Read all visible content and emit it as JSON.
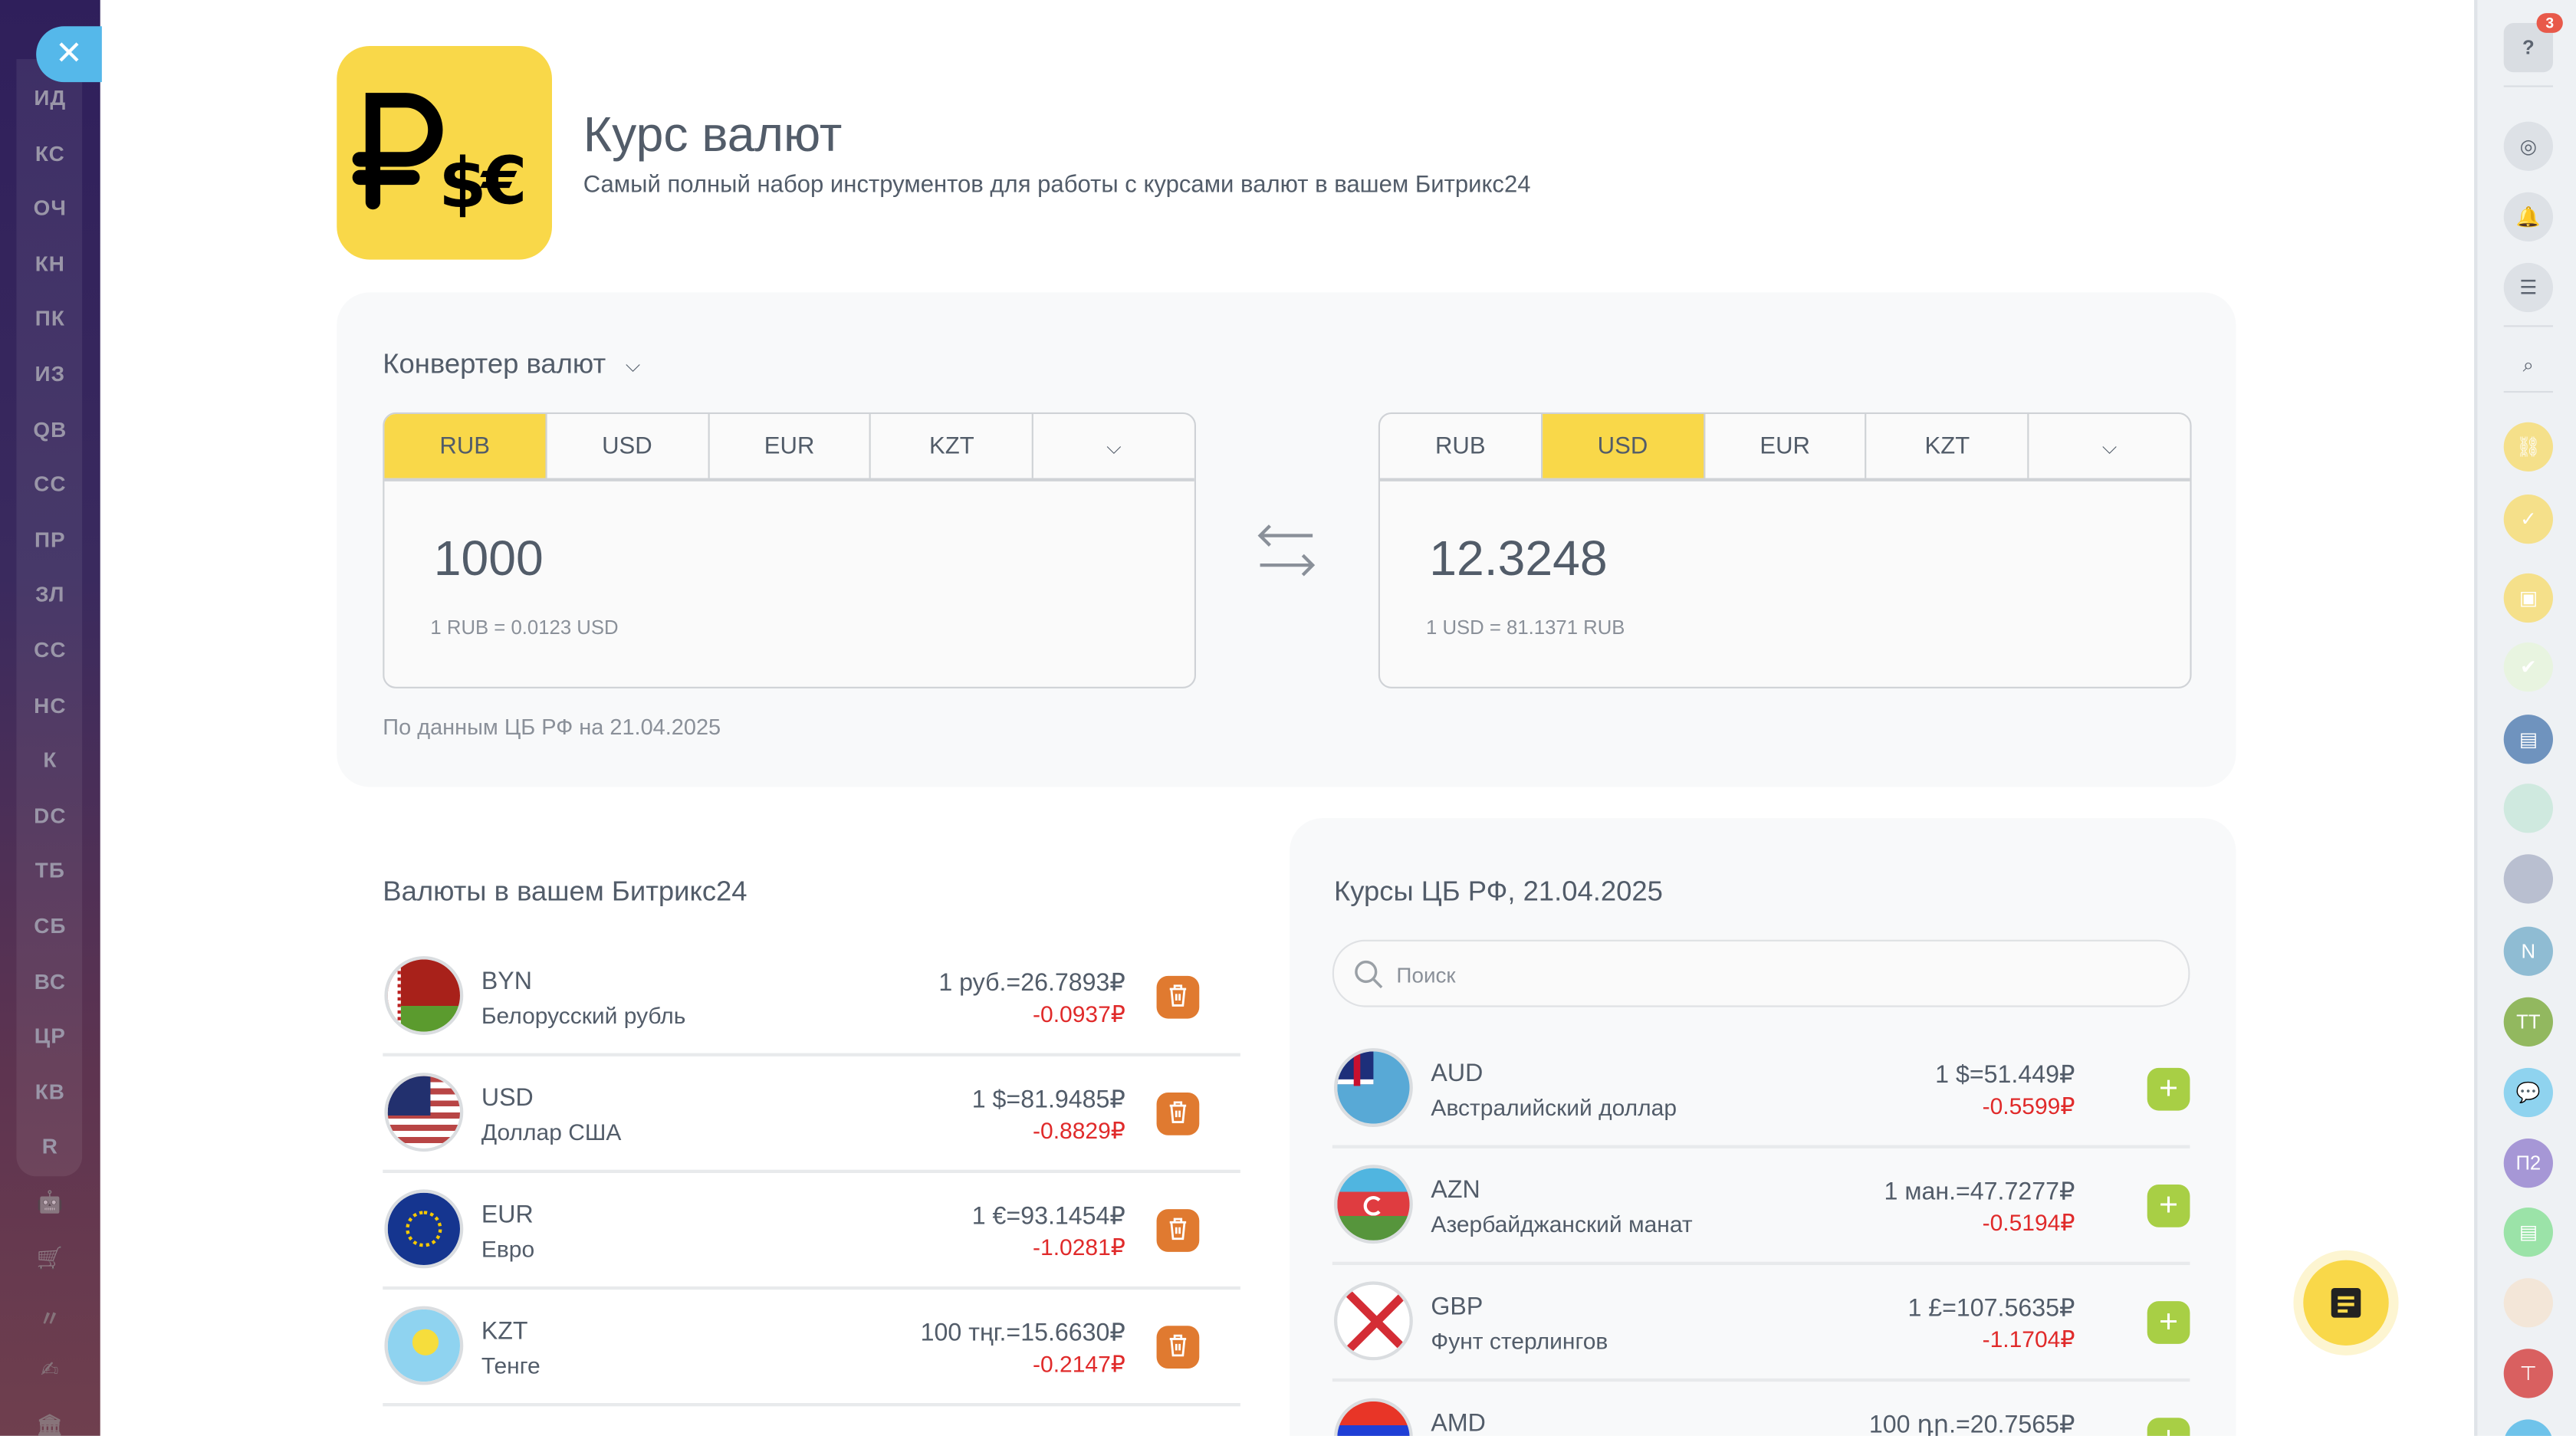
{
  "left_sidebar": {
    "close_icon": "close-icon",
    "items": [
      "ИД",
      "КС",
      "ОЧ",
      "КН",
      "ПК",
      "ИЗ",
      "QB",
      "СС",
      "ПР",
      "ЗЛ",
      "СС",
      "НС",
      "К",
      "DC",
      "ТБ",
      "СБ",
      "ВС",
      "ЦР",
      "КВ",
      "R"
    ],
    "icons": [
      "robot-icon",
      "cart-icon",
      "brand-icon",
      "signature-icon",
      "building-icon"
    ]
  },
  "right_sidebar": {
    "help_badge": "3",
    "avatars": [
      "N",
      "ТТ",
      "П2"
    ]
  },
  "header": {
    "title": "Курс валют",
    "subtitle": "Самый полный набор инструментов для работы с курсами валют в вашем Битрикс24"
  },
  "converter": {
    "title": "Конвертер валют",
    "left": {
      "tabs": [
        "RUB",
        "USD",
        "EUR",
        "KZT"
      ],
      "selected": "RUB",
      "value": "1000",
      "rate": "1 RUB = 0.0123 USD"
    },
    "right": {
      "tabs": [
        "RUB",
        "USD",
        "EUR",
        "KZT"
      ],
      "selected": "USD",
      "value": "12.3248",
      "rate": "1 USD = 81.1371 RUB"
    },
    "source": "По данным ЦБ РФ на 21.04.2025"
  },
  "my_currencies": {
    "title": "Валюты в вашем Битрикс24",
    "items": [
      {
        "code": "BYN",
        "name": "Белорусский рубль",
        "rate": "1 руб.=26.7893₽",
        "change": "-0.0937₽"
      },
      {
        "code": "USD",
        "name": "Доллар США",
        "rate": "1 $=81.9485₽",
        "change": "-0.8829₽"
      },
      {
        "code": "EUR",
        "name": "Евро",
        "rate": "1 €=93.1454₽",
        "change": "-1.0281₽"
      },
      {
        "code": "KZT",
        "name": "Тенге",
        "rate": "100 тңг.=15.6630₽",
        "change": "-0.2147₽"
      }
    ]
  },
  "cbr": {
    "title": "Курсы ЦБ РФ, 21.04.2025",
    "search_placeholder": "Поиск",
    "items": [
      {
        "code": "AUD",
        "name": "Австралийский доллар",
        "rate": "1 $=51.449₽",
        "change": "-0.5599₽"
      },
      {
        "code": "AZN",
        "name": "Азербайджанский манат",
        "rate": "1 ман.=47.7277₽",
        "change": "-0.5194₽"
      },
      {
        "code": "GBP",
        "name": "Фунт стерлингов",
        "rate": "1 £=107.5635₽",
        "change": "-1.1704₽"
      },
      {
        "code": "AMD",
        "name": "",
        "rate": "100 դր.=20.7565₽",
        "change": ""
      }
    ]
  },
  "colors": {
    "accent": "#f9d849",
    "delete": "#e07a30",
    "add": "#a8cf45",
    "negative": "#e02a2a"
  }
}
